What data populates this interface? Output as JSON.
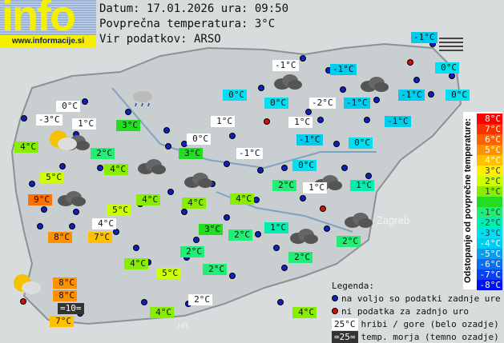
{
  "logo": {
    "text": "info",
    "url": "www.informacije.si"
  },
  "header": {
    "date_line": "Datum: 17.01.2026 ura: 09:50",
    "avg_line": "Povprečna temperatura: 3°C",
    "source_line": "Vir podatkov: ARSO"
  },
  "map_labels": [
    "Zagreb",
    "HR"
  ],
  "stations": [
    {
      "t": "-1°C",
      "c": "#00ccee"
    },
    {
      "t": "0°C",
      "c": "#00e0f0"
    },
    {
      "t": "-1°C",
      "c": "#ffffff"
    },
    {
      "t": "-1°C",
      "c": "#00ccee"
    },
    {
      "t": "0°C",
      "c": "#00e0f0"
    },
    {
      "t": "0°C",
      "c": "#00e0f0"
    },
    {
      "t": "-2°C",
      "c": "#ffffff"
    },
    {
      "t": "-1°C",
      "c": "#00ccee"
    },
    {
      "t": "-1°C",
      "c": "#00ccee"
    },
    {
      "t": "0°C",
      "c": "#00e0f0"
    },
    {
      "t": "-1°C",
      "c": "#00ccee"
    },
    {
      "t": "0°C",
      "c": "#ffffff"
    },
    {
      "t": "-3°C",
      "c": "#ffffff"
    },
    {
      "t": "1°C",
      "c": "#ffffff"
    },
    {
      "t": "3°C",
      "c": "#22dd22"
    },
    {
      "t": "1°C",
      "c": "#ffffff"
    },
    {
      "t": "1°C",
      "c": "#ffffff"
    },
    {
      "t": "-1°C",
      "c": "#00ccee"
    },
    {
      "t": "0°C",
      "c": "#00e0f0"
    },
    {
      "t": "4°C",
      "c": "#88ee00"
    },
    {
      "t": "2°C",
      "c": "#22ee77"
    },
    {
      "t": "3°C",
      "c": "#22dd22"
    },
    {
      "t": "0°C",
      "c": "#ffffff"
    },
    {
      "t": "-1°C",
      "c": "#ffffff"
    },
    {
      "t": "0°C",
      "c": "#00e0f0"
    },
    {
      "t": "4°C",
      "c": "#88ee00"
    },
    {
      "t": "5°C",
      "c": "#ccff00"
    },
    {
      "t": "2°C",
      "c": "#22ee77"
    },
    {
      "t": "1°C",
      "c": "#ffffff"
    },
    {
      "t": "1°C",
      "c": "#00eeb0"
    },
    {
      "t": "9°C",
      "c": "#ff7000"
    },
    {
      "t": "4°C",
      "c": "#88ee00"
    },
    {
      "t": "4°C",
      "c": "#88ee00"
    },
    {
      "t": "4°C",
      "c": "#88ee00"
    },
    {
      "t": "5°C",
      "c": "#ccff00"
    },
    {
      "t": "4°C",
      "c": "#ffffff"
    },
    {
      "t": "3°C",
      "c": "#22dd22"
    },
    {
      "t": "2°C",
      "c": "#22ee77"
    },
    {
      "t": "1°C",
      "c": "#00eeb0"
    },
    {
      "t": "2°C",
      "c": "#22ee77"
    },
    {
      "t": "8°C",
      "c": "#ff9000"
    },
    {
      "t": "7°C",
      "c": "#ffc000"
    },
    {
      "t": "2°C",
      "c": "#22ee77"
    },
    {
      "t": "2°C",
      "c": "#22ee77"
    },
    {
      "t": "4°C",
      "c": "#88ee00"
    },
    {
      "t": "5°C",
      "c": "#ccff00"
    },
    {
      "t": "2°C",
      "c": "#22ee77"
    },
    {
      "t": "8°C",
      "c": "#ff9000"
    },
    {
      "t": "8°C",
      "c": "#ff9000"
    },
    {
      "t": "=10=",
      "c": "#333333"
    },
    {
      "t": "7°C",
      "c": "#ffc000"
    },
    {
      "t": "2°C",
      "c": "#ffffff"
    },
    {
      "t": "4°C",
      "c": "#88ee00"
    },
    {
      "t": "4°C",
      "c": "#88ee00"
    }
  ],
  "scale": {
    "title": "Odstopanje od povprečne temperature:",
    "cells": [
      {
        "t": "8°C",
        "c": "#ff0000"
      },
      {
        "t": "7°C",
        "c": "#ff3000"
      },
      {
        "t": "6°C",
        "c": "#ff6000"
      },
      {
        "t": "5°C",
        "c": "#ff9000"
      },
      {
        "t": "4°C",
        "c": "#ffc000"
      },
      {
        "t": "3°C",
        "c": "#ffee00"
      },
      {
        "t": "2°C",
        "c": "#ccff00"
      },
      {
        "t": "1°C",
        "c": "#88ee00"
      },
      {
        "t": "",
        "c": "#22dd22"
      },
      {
        "t": "-1°C",
        "c": "#22ee77"
      },
      {
        "t": "-2°C",
        "c": "#00eeb0"
      },
      {
        "t": "-3°C",
        "c": "#00e0f0"
      },
      {
        "t": "-4°C",
        "c": "#00ccee"
      },
      {
        "t": "-5°C",
        "c": "#0a9cee"
      },
      {
        "t": "-6°C",
        "c": "#0a6cf0"
      },
      {
        "t": "-7°C",
        "c": "#0a40f0"
      },
      {
        "t": "-8°C",
        "c": "#0010f0"
      }
    ]
  },
  "legend": {
    "title": "Legenda:",
    "blue": "na voljo so podatki zadnje ure",
    "red": "ni podatka za zadnjo uro",
    "mountain_sample": "25°C",
    "mountain": "hribi / gore (belo ozadje)",
    "sea_sample": "=25=",
    "sea": "temp. morja (temno ozadje)"
  }
}
